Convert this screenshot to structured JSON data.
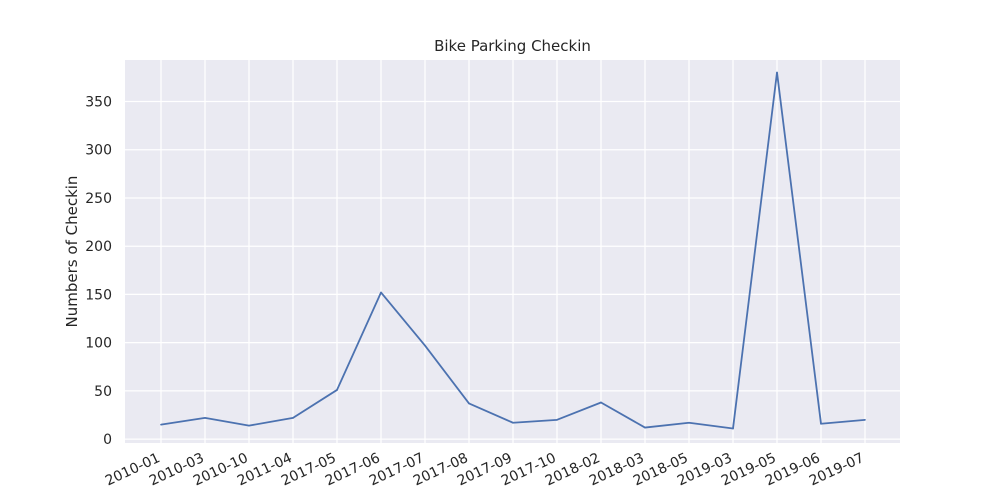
{
  "chart_data": {
    "type": "line",
    "title": "Bike Parking Checkin",
    "xlabel": "",
    "ylabel": "Numbers of Checkin",
    "categories": [
      "2010-01",
      "2010-03",
      "2010-10",
      "2011-04",
      "2017-05",
      "2017-06",
      "2017-07",
      "2017-08",
      "2017-09",
      "2017-10",
      "2018-02",
      "2018-03",
      "2018-05",
      "2019-03",
      "2019-05",
      "2019-06",
      "2019-07"
    ],
    "series": [
      {
        "values": [
          15,
          22,
          14,
          22,
          51,
          152,
          97,
          37,
          17,
          20,
          38,
          12,
          17,
          11,
          380,
          16,
          20
        ]
      }
    ],
    "yticks": [
      0,
      50,
      100,
      150,
      200,
      250,
      300,
      350
    ],
    "ylim": [
      -4,
      393
    ],
    "grid": true,
    "line_color": "#4c72b0",
    "background_color": "#eaeaf2",
    "grid_color": "#ffffff"
  }
}
